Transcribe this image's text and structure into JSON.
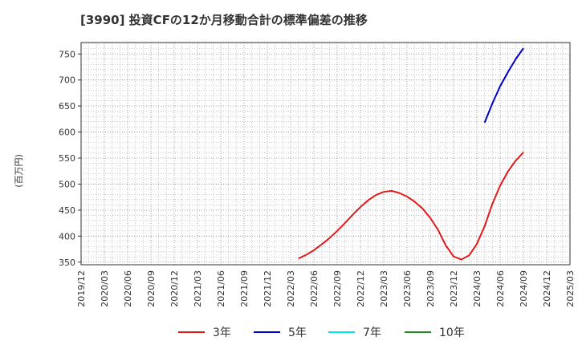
{
  "chart_data": {
    "type": "line",
    "title": "[3990]  投資CFの12か月移動合計の標準偏差の推移",
    "ylabel": "(百万円)",
    "xlabel": "",
    "ylim": [
      345,
      772
    ],
    "y_ticks": [
      350,
      400,
      450,
      500,
      550,
      600,
      650,
      700,
      750
    ],
    "x_ticks": [
      "2019/12",
      "2020/03",
      "2020/06",
      "2020/09",
      "2020/12",
      "2021/03",
      "2021/06",
      "2021/09",
      "2021/12",
      "2022/03",
      "2022/06",
      "2022/09",
      "2022/12",
      "2023/03",
      "2023/06",
      "2023/09",
      "2023/12",
      "2024/03",
      "2024/06",
      "2024/09",
      "2024/12",
      "2025/03"
    ],
    "grid": true,
    "legend_position": "bottom",
    "series": [
      {
        "name": "3年",
        "color": "#e31a1c",
        "x": [
          "2022/04",
          "2022/05",
          "2022/06",
          "2022/07",
          "2022/08",
          "2022/09",
          "2022/10",
          "2022/11",
          "2022/12",
          "2023/01",
          "2023/02",
          "2023/03",
          "2023/04",
          "2023/05",
          "2023/06",
          "2023/07",
          "2023/08",
          "2023/09",
          "2023/10",
          "2023/11",
          "2023/12",
          "2024/01",
          "2024/02",
          "2024/03",
          "2024/04",
          "2024/05",
          "2024/06",
          "2024/07",
          "2024/08",
          "2024/09"
        ],
        "values": [
          357,
          364,
          373,
          384,
          396,
          410,
          425,
          441,
          456,
          469,
          479,
          485,
          487,
          483,
          476,
          466,
          453,
          435,
          412,
          382,
          361,
          355,
          363,
          385,
          419,
          462,
          497,
          524,
          545,
          561
        ]
      },
      {
        "name": "5年",
        "color": "#0000cc",
        "x": [
          "2024/04",
          "2024/05",
          "2024/06",
          "2024/07",
          "2024/08",
          "2024/09"
        ],
        "values": [
          618,
          655,
          688,
          715,
          740,
          761
        ]
      },
      {
        "name": "7年",
        "color": "#00e5ee",
        "x": [],
        "values": []
      },
      {
        "name": "10年",
        "color": "#228b22",
        "x": [],
        "values": []
      }
    ]
  }
}
